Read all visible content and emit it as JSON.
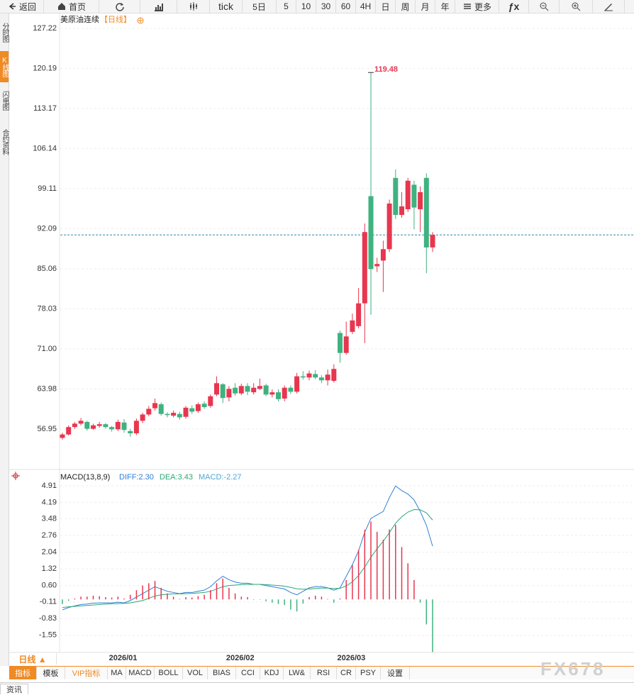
{
  "toolbar": {
    "back": "返回",
    "home": "首页",
    "tick": "tick",
    "periods": [
      "5日",
      "5",
      "10",
      "30",
      "60",
      "4H",
      "日",
      "周",
      "月",
      "年"
    ],
    "more": "更多",
    "fx": "ƒx"
  },
  "sidebar": [
    "分时图",
    "K线图",
    "闪电图",
    "合约资料"
  ],
  "chart_data": [
    {
      "type": "candlestick",
      "title": "美原油连续",
      "subtitle": "【日线】",
      "categories": [
        null,
        null,
        null,
        null,
        null,
        null,
        null,
        null,
        "2026/01",
        null,
        null,
        null,
        null,
        null,
        null,
        null,
        null,
        null,
        null,
        null,
        null,
        null,
        null,
        null,
        null,
        null,
        null,
        "2026/02",
        null,
        null,
        null,
        null,
        null,
        null,
        null,
        null,
        null,
        null,
        null,
        null,
        null,
        null,
        null,
        null,
        null,
        "2026/03",
        null,
        null,
        null,
        null,
        null,
        null,
        null,
        null,
        null,
        null,
        null,
        null,
        null,
        null,
        null
      ],
      "open": [
        55.4,
        56.0,
        57.3,
        57.9,
        58.2,
        57.0,
        57.5,
        57.8,
        57.3,
        56.9,
        58.1,
        56.6,
        56.2,
        58.4,
        59.5,
        60.6,
        61.3,
        59.6,
        59.3,
        59.6,
        59.1,
        60.6,
        60.1,
        61.4,
        61.0,
        63.0,
        64.8,
        62.5,
        64.2,
        63.2,
        64.5,
        63.4,
        64.0,
        64.6,
        63.0,
        63.4,
        62.3,
        64.2,
        63.5,
        66.2,
        66.0,
        66.6,
        66.0,
        65.5,
        65.4,
        73.8,
        70.3,
        74.0,
        75.0,
        79.0,
        97.8,
        85.5,
        86.5,
        88.5,
        101.0,
        94.5,
        95.5,
        99.8,
        95.5,
        101.0,
        88.8
      ],
      "high": [
        56.3,
        57.6,
        58.2,
        58.9,
        58.4,
        57.9,
        58.2,
        58.0,
        57.5,
        58.6,
        58.7,
        57.0,
        58.8,
        59.8,
        61.0,
        62.3,
        61.6,
        59.9,
        60.2,
        60.0,
        61.0,
        61.1,
        61.6,
        61.8,
        63.0,
        66.2,
        65.0,
        64.5,
        65.0,
        64.9,
        65.0,
        65.0,
        65.8,
        64.9,
        63.9,
        63.9,
        64.6,
        64.6,
        66.8,
        67.1,
        67.2,
        67.3,
        66.4,
        67.4,
        68.3,
        74.2,
        75.8,
        77.2,
        81.7,
        93.0,
        119.48,
        87.0,
        90.0,
        97.2,
        102.5,
        98.5,
        101.0,
        100.5,
        99.5,
        101.8,
        91.5
      ],
      "low": [
        55.1,
        55.8,
        57.0,
        57.6,
        56.7,
        56.8,
        57.2,
        57.0,
        56.5,
        56.6,
        56.3,
        55.6,
        55.9,
        58.0,
        59.2,
        60.2,
        59.3,
        59.0,
        59.0,
        58.6,
        58.8,
        59.6,
        59.8,
        60.5,
        60.7,
        62.7,
        61.5,
        61.8,
        62.8,
        62.9,
        62.9,
        63.0,
        63.8,
        62.7,
        62.5,
        61.8,
        61.8,
        63.1,
        63.2,
        65.6,
        65.5,
        65.7,
        65.0,
        64.6,
        65.1,
        68.6,
        70.0,
        73.6,
        74.6,
        72.0,
        77.0,
        84.5,
        81.0,
        88.0,
        93.8,
        94.0,
        95.0,
        92.0,
        91.5,
        84.3,
        88.0
      ],
      "close": [
        56.0,
        57.3,
        57.9,
        58.4,
        57.0,
        57.6,
        57.8,
        57.3,
        56.9,
        58.2,
        56.8,
        56.2,
        58.4,
        59.5,
        60.5,
        61.5,
        59.6,
        59.4,
        59.8,
        59.0,
        60.7,
        60.0,
        61.3,
        60.8,
        62.7,
        65.0,
        62.4,
        64.0,
        63.2,
        64.5,
        63.5,
        64.2,
        64.5,
        63.0,
        63.4,
        62.2,
        64.2,
        63.5,
        66.2,
        66.0,
        66.7,
        66.0,
        65.5,
        66.5,
        67.5,
        70.3,
        73.2,
        76.0,
        79.0,
        91.5,
        85.0,
        85.9,
        88.5,
        96.5,
        94.5,
        96.0,
        100.5,
        95.8,
        98.5,
        88.8,
        91.0
      ],
      "up_color": "#e8364f",
      "down_color": "#3fb27f",
      "last_price_color": "#2b8aa6",
      "label_color": "#e8364f",
      "ylim": [
        50.11,
        129.71
      ],
      "yticks": [
        56.95,
        63.98,
        {
          "value": 71,
          "label": "71.00"
        },
        78.03,
        85.06,
        92.09,
        99.11,
        106.14,
        113.17,
        120.19,
        127.22
      ],
      "grid": true
    },
    {
      "type": "macd",
      "title": "MACD(13,8,9)",
      "series": [
        {
          "name": "DIFF:2.30",
          "color": "#2f7fd6",
          "style": "line",
          "values": [
            -0.45,
            -0.35,
            -0.28,
            -0.22,
            -0.2,
            -0.16,
            -0.15,
            -0.15,
            -0.15,
            -0.12,
            -0.15,
            -0.05,
            0.1,
            0.25,
            0.4,
            0.55,
            0.45,
            0.35,
            0.3,
            0.25,
            0.3,
            0.3,
            0.35,
            0.4,
            0.55,
            0.8,
            1.0,
            0.85,
            0.75,
            0.7,
            0.7,
            0.65,
            0.65,
            0.6,
            0.55,
            0.5,
            0.45,
            0.3,
            0.2,
            0.35,
            0.5,
            0.55,
            0.55,
            0.5,
            0.4,
            0.5,
            1.0,
            1.5,
            2.1,
            2.9,
            3.5,
            3.65,
            3.8,
            4.4,
            4.9,
            4.7,
            4.55,
            4.3,
            3.8,
            3.2,
            2.3
          ]
        },
        {
          "name": "DEA:3.43",
          "color": "#2aa876",
          "style": "line",
          "values": [
            -0.35,
            -0.32,
            -0.3,
            -0.28,
            -0.26,
            -0.24,
            -0.22,
            -0.2,
            -0.19,
            -0.18,
            -0.17,
            -0.15,
            -0.1,
            -0.05,
            0.05,
            0.15,
            0.2,
            0.22,
            0.24,
            0.24,
            0.25,
            0.26,
            0.28,
            0.3,
            0.35,
            0.45,
            0.55,
            0.6,
            0.62,
            0.64,
            0.65,
            0.65,
            0.65,
            0.64,
            0.62,
            0.6,
            0.57,
            0.52,
            0.46,
            0.44,
            0.45,
            0.47,
            0.49,
            0.49,
            0.47,
            0.48,
            0.58,
            0.76,
            1.03,
            1.4,
            1.82,
            2.19,
            2.51,
            2.89,
            3.29,
            3.57,
            3.77,
            3.88,
            3.87,
            3.74,
            3.43
          ]
        },
        {
          "name": "MACD:-2.27",
          "color": "#4aa8d8",
          "style": "bar",
          "up_color": "#e8364f",
          "down_color": "#3fb27f",
          "values": [
            -0.2,
            -0.06,
            0.04,
            0.12,
            0.12,
            0.16,
            0.14,
            0.1,
            0.08,
            0.12,
            0.04,
            0.2,
            0.4,
            0.6,
            0.7,
            0.8,
            0.5,
            0.26,
            0.12,
            0.02,
            0.1,
            0.08,
            0.14,
            0.2,
            0.4,
            0.7,
            0.9,
            0.5,
            0.26,
            0.12,
            0.1,
            0,
            0,
            -0.08,
            -0.14,
            -0.2,
            -0.24,
            -0.44,
            -0.52,
            -0.18,
            0.1,
            0.16,
            0.12,
            0.02,
            -0.14,
            0.04,
            0.84,
            1.48,
            2.14,
            3.0,
            3.36,
            2.92,
            2.58,
            3.02,
            3.22,
            2.26,
            1.56,
            0.84,
            -0.14,
            -1.08,
            -2.27
          ]
        }
      ],
      "ylim": [
        -2.29,
        5.52
      ],
      "yticks": [
        {
          "value": 4.91,
          "label": "4.91"
        },
        4.19,
        3.48,
        2.76,
        2.04,
        1.32,
        {
          "value": 0.6,
          "label": "0.60"
        },
        -0.11,
        -0.83,
        -1.55
      ],
      "grid": true
    }
  ],
  "period_selector": "日线 ▲",
  "indicator_tabs": [
    "指标",
    "模板",
    "VIP指标",
    "MA",
    "MACD",
    "BOLL",
    "VOL",
    "BIAS",
    "CCI",
    "KDJ",
    "LW&",
    "RSI",
    "CR",
    "PSY",
    "设置"
  ],
  "news_tab": "资讯",
  "watermark": "FX678"
}
